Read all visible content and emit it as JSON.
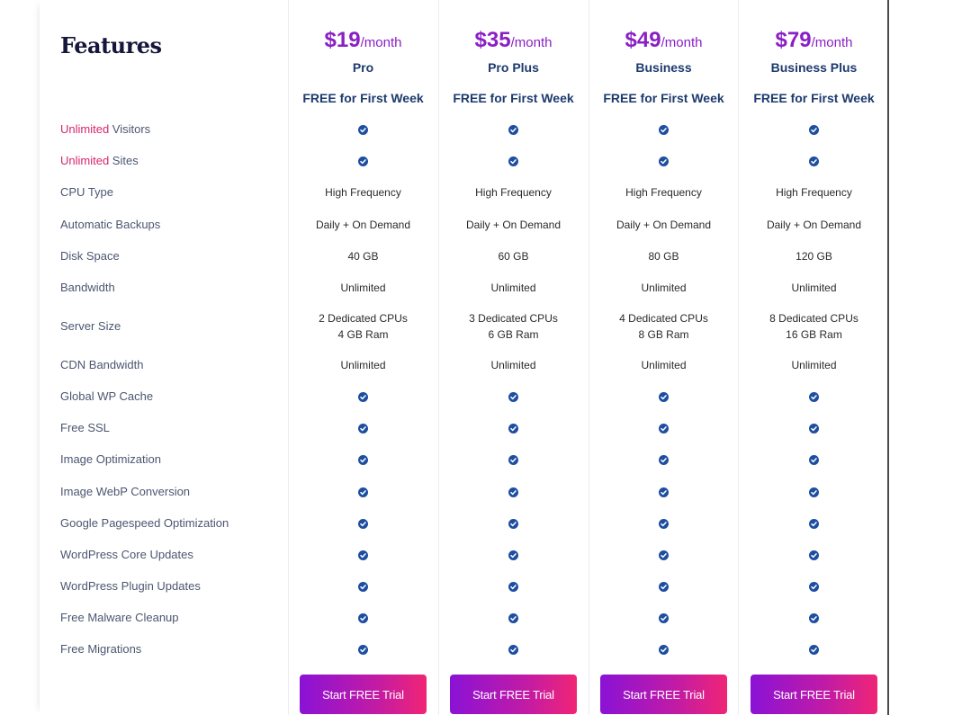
{
  "table": {
    "title": "Features",
    "plans": [
      {
        "price": "$19",
        "period": "/month",
        "name": "Pro",
        "trial_note": "FREE for First Week",
        "cta": "Start FREE Trial"
      },
      {
        "price": "$35",
        "period": "/month",
        "name": "Pro Plus",
        "trial_note": "FREE for First Week",
        "cta": "Start FREE Trial"
      },
      {
        "price": "$49",
        "period": "/month",
        "name": "Business",
        "trial_note": "FREE for First Week",
        "cta": "Start FREE Trial"
      },
      {
        "price": "$79",
        "period": "/month",
        "name": "Business Plus",
        "trial_note": "FREE for First Week",
        "cta": "Start FREE Trial"
      }
    ],
    "features": [
      {
        "highlight": "Unlimited",
        "label": " Visitors",
        "values": [
          "check-icon",
          "check-icon",
          "check-icon",
          "check-icon"
        ]
      },
      {
        "highlight": "Unlimited",
        "label": " Sites",
        "values": [
          "check-icon",
          "check-icon",
          "check-icon",
          "check-icon"
        ]
      },
      {
        "highlight": "",
        "label": "CPU Type",
        "values": [
          "High Frequency",
          "High Frequency",
          "High Frequency",
          "High Frequency"
        ]
      },
      {
        "highlight": "",
        "label": "Automatic Backups",
        "values": [
          "Daily + On Demand",
          "Daily + On Demand",
          "Daily + On Demand",
          "Daily + On Demand"
        ]
      },
      {
        "highlight": "",
        "label": "Disk Space",
        "values": [
          "40 GB",
          "60 GB",
          "80 GB",
          "120 GB"
        ]
      },
      {
        "highlight": "",
        "label": "Bandwidth",
        "values": [
          "Unlimited",
          "Unlimited",
          "Unlimited",
          "Unlimited"
        ]
      },
      {
        "highlight": "",
        "label": "Server Size",
        "values": [
          [
            "2 Dedicated CPUs",
            "4 GB Ram"
          ],
          [
            "3 Dedicated CPUs",
            "6 GB Ram"
          ],
          [
            "4 Dedicated CPUs",
            "8 GB Ram"
          ],
          [
            "8 Dedicated CPUs",
            "16 GB Ram"
          ]
        ]
      },
      {
        "highlight": "",
        "label": "CDN Bandwidth",
        "values": [
          "Unlimited",
          "Unlimited",
          "Unlimited",
          "Unlimited"
        ]
      },
      {
        "highlight": "",
        "label": "Global WP Cache",
        "values": [
          "check-icon",
          "check-icon",
          "check-icon",
          "check-icon"
        ]
      },
      {
        "highlight": "",
        "label": "Free SSL",
        "values": [
          "check-icon",
          "check-icon",
          "check-icon",
          "check-icon"
        ]
      },
      {
        "highlight": "",
        "label": "Image Optimization",
        "values": [
          "check-icon",
          "check-icon",
          "check-icon",
          "check-icon"
        ]
      },
      {
        "highlight": "",
        "label": "Image WebP Conversion",
        "values": [
          "check-icon",
          "check-icon",
          "check-icon",
          "check-icon"
        ]
      },
      {
        "highlight": "",
        "label": "Google Pagespeed Optimization",
        "values": [
          "check-icon",
          "check-icon",
          "check-icon",
          "check-icon"
        ]
      },
      {
        "highlight": "",
        "label": "WordPress Core Updates",
        "values": [
          "check-icon",
          "check-icon",
          "check-icon",
          "check-icon"
        ]
      },
      {
        "highlight": "",
        "label": "WordPress Plugin Updates",
        "values": [
          "check-icon",
          "check-icon",
          "check-icon",
          "check-icon"
        ]
      },
      {
        "highlight": "",
        "label": "Free Malware Cleanup",
        "values": [
          "check-icon",
          "check-icon",
          "check-icon",
          "check-icon"
        ]
      },
      {
        "highlight": "",
        "label": "Free Migrations",
        "values": [
          "check-icon",
          "check-icon",
          "check-icon",
          "check-icon"
        ]
      }
    ]
  },
  "colors": {
    "price": "#8a1fc4",
    "highlight": "#d7266b",
    "check": "#1d4ea0",
    "plan_text": "#1d3b6e",
    "button_gradient_start": "#8a12d6",
    "button_gradient_end": "#f02575"
  }
}
